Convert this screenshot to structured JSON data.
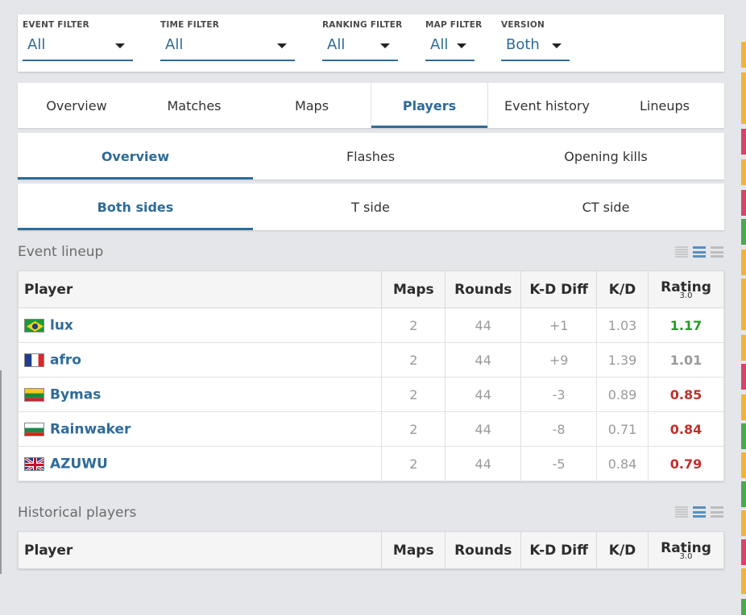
{
  "filters": [
    {
      "label": "EVENT FILTER",
      "value": "All"
    },
    {
      "label": "TIME FILTER",
      "value": "All"
    },
    {
      "label": "RANKING FILTER",
      "value": "All"
    },
    {
      "label": "MAP FILTER",
      "value": "All"
    },
    {
      "label": "VERSION",
      "value": "Both"
    }
  ],
  "tabs": [
    {
      "label": "Overview",
      "active": false
    },
    {
      "label": "Matches",
      "active": false
    },
    {
      "label": "Maps",
      "active": false
    },
    {
      "label": "Players",
      "active": true
    },
    {
      "label": "Event history",
      "active": false
    },
    {
      "label": "Lineups",
      "active": false
    }
  ],
  "subtabs": [
    {
      "label": "Overview",
      "active": true
    },
    {
      "label": "Flashes",
      "active": false
    },
    {
      "label": "Opening kills",
      "active": false
    }
  ],
  "sidetabs": [
    {
      "label": "Both sides",
      "active": true
    },
    {
      "label": "T side",
      "active": false
    },
    {
      "label": "CT side",
      "active": false
    }
  ],
  "event_lineup": {
    "title": "Event lineup",
    "headers": {
      "player": "Player",
      "maps": "Maps",
      "rounds": "Rounds",
      "kd_diff": "K-D Diff",
      "kd": "K/D",
      "rating": "Rating",
      "rating_version": "3.0"
    },
    "rows": [
      {
        "flag": "brazil",
        "name": "lux",
        "maps": "2",
        "rounds": "44",
        "kd_diff": "+1",
        "kd": "1.03",
        "rating": "1.17"
      },
      {
        "flag": "france",
        "name": "afro",
        "maps": "2",
        "rounds": "44",
        "kd_diff": "+9",
        "kd": "1.39",
        "rating": "1.01"
      },
      {
        "flag": "lithuania",
        "name": "Bymas",
        "maps": "2",
        "rounds": "44",
        "kd_diff": "-3",
        "kd": "0.89",
        "rating": "0.85"
      },
      {
        "flag": "bulgaria",
        "name": "Rainwaker",
        "maps": "2",
        "rounds": "44",
        "kd_diff": "-8",
        "kd": "0.71",
        "rating": "0.84"
      },
      {
        "flag": "uk",
        "name": "AZUWU",
        "maps": "2",
        "rounds": "44",
        "kd_diff": "-5",
        "kd": "0.84",
        "rating": "0.79"
      }
    ]
  },
  "historical_players": {
    "title": "Historical players",
    "headers": {
      "player": "Player",
      "maps": "Maps",
      "rounds": "Rounds",
      "kd_diff": "K-D Diff",
      "kd": "K/D",
      "rating": "Rating",
      "rating_version": "3.0"
    }
  },
  "colors": {
    "accent": "#2f6b98",
    "positive": "#2a9a2a",
    "negative": "#c0302b"
  }
}
